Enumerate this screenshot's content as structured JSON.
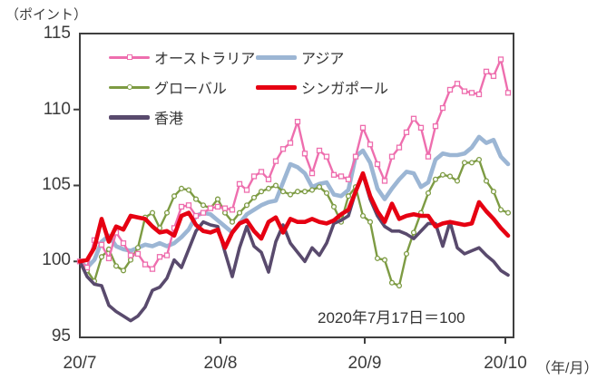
{
  "meta": {
    "unit_y": "（ポイント）",
    "unit_x": "（年/月）",
    "annotation": "2020年7月17日＝100"
  },
  "chart_data": {
    "type": "line",
    "title": "",
    "xlabel": "年/月",
    "ylabel": "ポイント",
    "ylim": [
      95,
      115
    ],
    "grid": false,
    "legend_position": "top-left-inside",
    "x_tick_labels": [
      "20/7",
      "20/8",
      "20/9",
      "20/10"
    ],
    "y_tick_labels": [
      "115",
      "110",
      "105",
      "100",
      "95"
    ],
    "y_ticks": [
      115,
      110,
      105,
      100,
      95
    ],
    "baseline_note": "2020年7月17日＝100",
    "series": [
      {
        "key": "australia",
        "name": "オーストラリア",
        "color": "#ee6eae",
        "marker": "square",
        "width": 2.4,
        "values": [
          100.0,
          99.6,
          101.4,
          101.1,
          100.2,
          101.9,
          101.2,
          100.4,
          100.5,
          99.8,
          99.5,
          100.3,
          100.4,
          102.2,
          103.6,
          103.7,
          103.0,
          103.2,
          103.5,
          103.6,
          103.5,
          103.4,
          105.1,
          104.7,
          105.6,
          105.9,
          105.4,
          106.6,
          107.4,
          107.8,
          109.2,
          107.1,
          105.8,
          107.3,
          106.9,
          105.7,
          105.6,
          105.4,
          106.9,
          108.8,
          107.7,
          106.4,
          105.3,
          106.9,
          107.5,
          108.5,
          109.4,
          108.8,
          106.9,
          108.9,
          110.1,
          111.3,
          111.7,
          111.2,
          111.1,
          111.0,
          112.5,
          112.2,
          113.3,
          111.1
        ]
      },
      {
        "key": "asia",
        "name": "アジア",
        "color": "#9cb6d4",
        "marker": "none",
        "width": 4.6,
        "values": [
          100.0,
          99.6,
          100.1,
          101.3,
          101.7,
          101.0,
          100.8,
          100.7,
          100.9,
          101.1,
          101.0,
          101.2,
          101.0,
          101.2,
          101.6,
          102.1,
          103.0,
          103.2,
          103.1,
          102.7,
          102.3,
          101.9,
          102.5,
          103.1,
          103.4,
          103.7,
          103.9,
          104.0,
          105.2,
          106.4,
          106.2,
          105.8,
          104.9,
          105.1,
          105.2,
          104.4,
          104.3,
          104.7,
          106.9,
          107.3,
          106.5,
          104.8,
          104.1,
          104.8,
          105.4,
          105.9,
          105.8,
          104.9,
          105.2,
          106.7,
          107.1,
          107.0,
          107.0,
          107.1,
          107.5,
          108.2,
          107.8,
          108.0,
          106.9,
          106.4
        ]
      },
      {
        "key": "global",
        "name": "グローバル",
        "color": "#7d9b43",
        "marker": "circle",
        "width": 2.4,
        "values": [
          100.0,
          99.4,
          98.7,
          100.3,
          100.8,
          99.7,
          99.4,
          100.1,
          100.9,
          102.9,
          103.2,
          102.2,
          103.2,
          104.3,
          104.8,
          104.7,
          104.1,
          103.7,
          103.5,
          104.1,
          103.2,
          102.6,
          103.2,
          103.7,
          104.2,
          104.6,
          104.8,
          105.0,
          104.6,
          104.4,
          104.6,
          104.6,
          104.7,
          104.9,
          104.5,
          103.6,
          102.6,
          104.3,
          104.9,
          103.0,
          102.6,
          100.2,
          100.1,
          98.6,
          98.4,
          100.5,
          101.9,
          103.2,
          104.5,
          105.4,
          105.7,
          105.6,
          105.3,
          106.5,
          106.5,
          106.7,
          105.3,
          104.6,
          103.4,
          103.2
        ]
      },
      {
        "key": "singapore",
        "name": "シンガポール",
        "color": "#e60012",
        "marker": "none",
        "width": 4.6,
        "values": [
          100.0,
          100.1,
          100.9,
          102.8,
          101.3,
          102.3,
          102.1,
          103.0,
          102.9,
          102.8,
          102.3,
          101.9,
          102.0,
          101.7,
          103.0,
          103.2,
          102.4,
          102.0,
          101.9,
          102.1,
          100.9,
          101.9,
          102.5,
          102.7,
          102.0,
          101.5,
          102.6,
          102.9,
          101.9,
          102.8,
          102.6,
          102.6,
          102.8,
          102.6,
          102.5,
          102.7,
          103.1,
          103.4,
          104.6,
          105.8,
          104.3,
          103.3,
          102.6,
          103.8,
          102.8,
          103.0,
          103.1,
          103.0,
          103.0,
          102.3,
          102.5,
          102.6,
          102.5,
          102.4,
          102.5,
          103.9,
          103.3,
          102.8,
          102.2,
          101.7
        ]
      },
      {
        "key": "hongkong",
        "name": "香港",
        "color": "#594a6d",
        "marker": "none",
        "width": 3.6,
        "values": [
          100.0,
          99.0,
          98.5,
          98.4,
          97.1,
          96.7,
          96.4,
          96.1,
          96.4,
          97.0,
          98.1,
          98.3,
          98.9,
          100.1,
          99.6,
          100.8,
          102.0,
          102.6,
          102.4,
          102.3,
          100.6,
          99.0,
          100.9,
          102.3,
          101.0,
          100.6,
          99.3,
          101.3,
          102.4,
          101.2,
          100.6,
          100.0,
          100.9,
          100.4,
          101.2,
          102.5,
          102.7,
          103.0,
          104.6,
          105.7,
          104.1,
          103.0,
          102.3,
          102.0,
          102.0,
          101.8,
          101.5,
          102.0,
          102.5,
          102.5,
          101.0,
          102.6,
          100.9,
          100.5,
          100.7,
          100.9,
          100.4,
          100.0,
          99.4,
          99.1
        ]
      }
    ]
  }
}
